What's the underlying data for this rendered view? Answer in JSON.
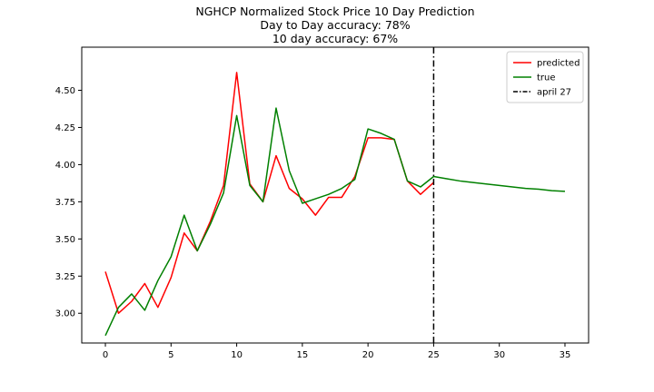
{
  "chart_data": {
    "type": "line",
    "title_lines": [
      "NGHCP Normalized Stock Price 10 Day Prediction",
      "Day to Day accuracy: 78%",
      "10 day accuracy: 67%"
    ],
    "xlim": [
      -1.8,
      36.8
    ],
    "ylim": [
      2.8,
      4.79
    ],
    "x_ticks": [
      0,
      5,
      10,
      15,
      20,
      25,
      30,
      35
    ],
    "y_ticks": [
      3.0,
      3.25,
      3.5,
      3.75,
      4.0,
      4.25,
      4.5
    ],
    "x_tick_labels": [
      "0",
      "5",
      "10",
      "15",
      "20",
      "25",
      "30",
      "35"
    ],
    "y_tick_labels": [
      "3.00",
      "3.25",
      "3.50",
      "3.75",
      "4.00",
      "4.25",
      "4.50"
    ],
    "grid": false,
    "legend_position": "upper right",
    "series": [
      {
        "name": "predicted",
        "color": "#ff0000",
        "style": "solid",
        "x": [
          0,
          1,
          2,
          3,
          4,
          5,
          6,
          7,
          8,
          9,
          10,
          11,
          12,
          13,
          14,
          15,
          16,
          17,
          18,
          19,
          20,
          21,
          22,
          23,
          24,
          25
        ],
        "y": [
          3.28,
          3.0,
          3.08,
          3.2,
          3.04,
          3.24,
          3.54,
          3.42,
          3.62,
          3.86,
          4.62,
          3.87,
          3.75,
          4.06,
          3.84,
          3.77,
          3.66,
          3.78,
          3.78,
          3.92,
          4.18,
          4.18,
          4.17,
          3.89,
          3.8,
          3.88
        ]
      },
      {
        "name": "true",
        "color": "#008000",
        "style": "solid",
        "x": [
          0,
          1,
          2,
          3,
          4,
          5,
          6,
          7,
          8,
          9,
          10,
          11,
          12,
          13,
          14,
          15,
          16,
          17,
          18,
          19,
          20,
          21,
          22,
          23,
          24,
          25,
          26,
          27,
          28,
          29,
          30,
          31,
          32,
          33,
          34,
          35
        ],
        "y": [
          2.85,
          3.04,
          3.13,
          3.02,
          3.22,
          3.38,
          3.66,
          3.42,
          3.6,
          3.81,
          4.33,
          3.86,
          3.75,
          4.38,
          3.96,
          3.74,
          3.77,
          3.8,
          3.84,
          3.9,
          4.24,
          4.21,
          4.17,
          3.89,
          3.85,
          3.92,
          3.905,
          3.89,
          3.88,
          3.87,
          3.86,
          3.85,
          3.84,
          3.835,
          3.825,
          3.82
        ]
      },
      {
        "name": "april 27",
        "color": "#000000",
        "style": "dashdot",
        "vline_x": 25
      }
    ]
  }
}
